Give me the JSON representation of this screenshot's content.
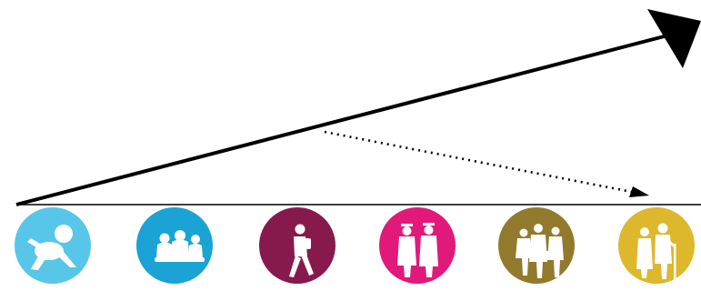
{
  "stages": [
    {
      "id": "baby",
      "icon": "crawling-baby-icon",
      "color": "#57c6e8"
    },
    {
      "id": "children",
      "icon": "sitting-children-icon",
      "color": "#1aa3d4"
    },
    {
      "id": "teen",
      "icon": "walking-student-icon",
      "color": "#861a4c"
    },
    {
      "id": "graduates",
      "icon": "graduates-icon",
      "color": "#e0197a"
    },
    {
      "id": "adults",
      "icon": "working-adults-icon",
      "color": "#927a2c"
    },
    {
      "id": "elderly",
      "icon": "elderly-couple-icon",
      "color": "#ddb72c"
    }
  ],
  "colors": {
    "line": "#000000",
    "icon_fill": "#ffffff"
  }
}
